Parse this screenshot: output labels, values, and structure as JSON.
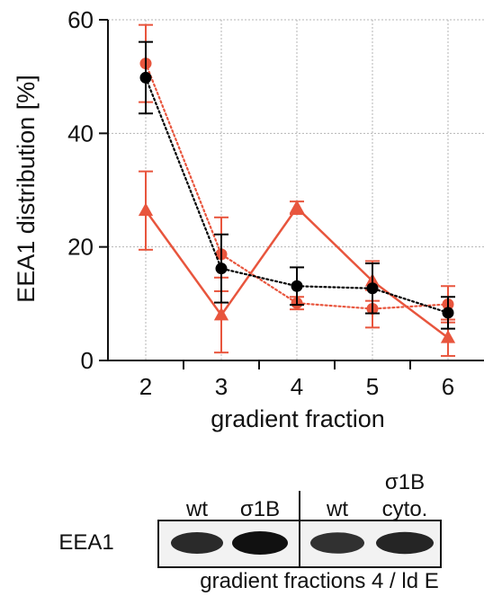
{
  "chart_data": {
    "type": "line",
    "xlabel": "gradient fraction",
    "ylabel": "EEA1 distribution [%]",
    "x": [
      2,
      3,
      4,
      5,
      6
    ],
    "xlim": [
      1.5,
      6.5
    ],
    "ylim": [
      0,
      60
    ],
    "yticks": [
      0,
      20,
      40,
      60
    ],
    "grid": true,
    "series": [
      {
        "color": "#000000",
        "marker": "circle",
        "line": "dotted",
        "values": [
          49.8,
          16.2,
          13.1,
          12.7,
          8.4
        ],
        "errors": [
          6.3,
          6.0,
          3.3,
          4.4,
          2.8
        ]
      },
      {
        "color": "#e8553d",
        "marker": "circle",
        "line": "dotted",
        "values": [
          52.3,
          18.7,
          10.1,
          9.1,
          9.9
        ],
        "errors": [
          6.8,
          6.5,
          1.1,
          3.3,
          3.2
        ]
      },
      {
        "color": "#e8553d",
        "marker": "triangle",
        "line": "solid",
        "values": [
          26.4,
          8.0,
          26.9,
          14.0,
          4.0
        ],
        "errors": [
          6.9,
          6.6,
          1.1,
          3.5,
          3.2
        ]
      }
    ]
  },
  "blot": {
    "row_label": "EEA1",
    "lane_labels": [
      "wt",
      "σ1B",
      "wt",
      "σ1B",
      "cyto."
    ],
    "caption": "gradient fractions 4 / ld E",
    "band_intensity": [
      0.75,
      1.0,
      0.7,
      0.8
    ]
  }
}
